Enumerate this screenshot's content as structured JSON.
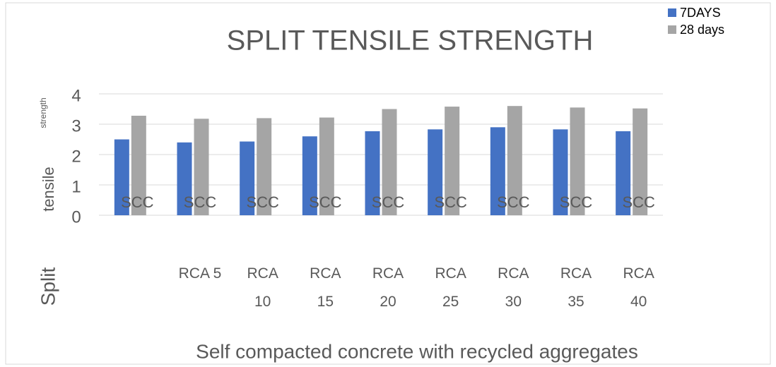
{
  "chart_data": {
    "type": "bar",
    "title": "SPLIT TENSILE STRENGTH",
    "ylabel_parts": [
      "strength",
      "tensile",
      "Split"
    ],
    "xlabel": "Self compacted concrete with recycled aggregates",
    "categories": [
      "SCC",
      "SCC",
      "SCC",
      "SCC",
      "SCC",
      "SCC",
      "SCC",
      "SCC",
      "SCC"
    ],
    "sublabels": [
      null,
      "RCA 5",
      "RCA 10",
      "RCA 15",
      "RCA 20",
      "RCA 25",
      "RCA 30",
      "RCA 35",
      "RCA 40"
    ],
    "series": [
      {
        "name": "7DAYS",
        "color": "#4472c4",
        "values": [
          2.5,
          2.4,
          2.43,
          2.6,
          2.77,
          2.83,
          2.9,
          2.83,
          2.77
        ]
      },
      {
        "name": "28 days",
        "color": "#a5a5a5",
        "values": [
          3.28,
          3.18,
          3.2,
          3.22,
          3.5,
          3.58,
          3.6,
          3.55,
          3.52
        ]
      }
    ],
    "ylim": [
      0,
      4
    ],
    "yticks": [
      0,
      1,
      2,
      3,
      4
    ],
    "grid": true,
    "legend": "top-right"
  }
}
